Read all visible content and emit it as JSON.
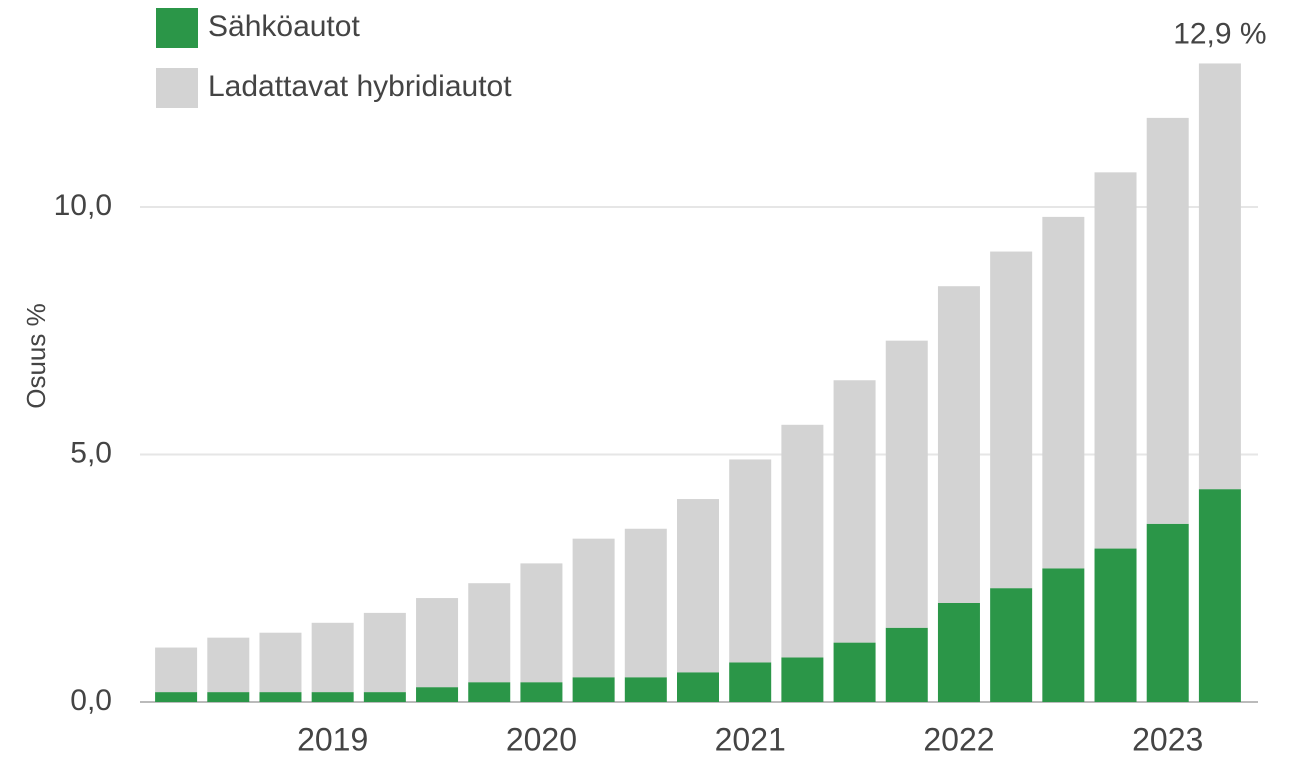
{
  "chart_data": {
    "type": "stacked_bar",
    "y_label": "Osuus %",
    "categories": [
      null,
      null,
      null,
      "2019",
      null,
      null,
      null,
      "2020",
      null,
      null,
      null,
      "2021",
      null,
      null,
      null,
      "2022",
      null,
      null,
      null,
      "2023",
      null
    ],
    "series": [
      {
        "name": "Sähköautot",
        "color": "#2b9648",
        "values": [
          0.2,
          0.2,
          0.2,
          0.2,
          0.2,
          0.3,
          0.4,
          0.4,
          0.5,
          0.5,
          0.6,
          0.8,
          0.9,
          1.2,
          1.5,
          2.0,
          2.3,
          2.7,
          3.1,
          3.6,
          4.3
        ]
      },
      {
        "name": "Ladattavat hybridiautot",
        "color": "#d3d3d3",
        "values": [
          0.9,
          1.1,
          1.2,
          1.4,
          1.6,
          1.8,
          2.0,
          2.4,
          2.8,
          3.0,
          3.5,
          4.1,
          4.7,
          5.3,
          5.8,
          6.4,
          6.8,
          7.1,
          7.6,
          8.2,
          8.6
        ]
      }
    ],
    "annotations": [
      {
        "label": "12,9 %",
        "value": 12.9
      }
    ],
    "ylim": [
      0,
      13
    ],
    "yticks": [
      {
        "value": 0,
        "label": "0,0"
      },
      {
        "value": 5,
        "label": "5,0"
      },
      {
        "value": 10,
        "label": "10,0"
      }
    ],
    "grid": true
  }
}
